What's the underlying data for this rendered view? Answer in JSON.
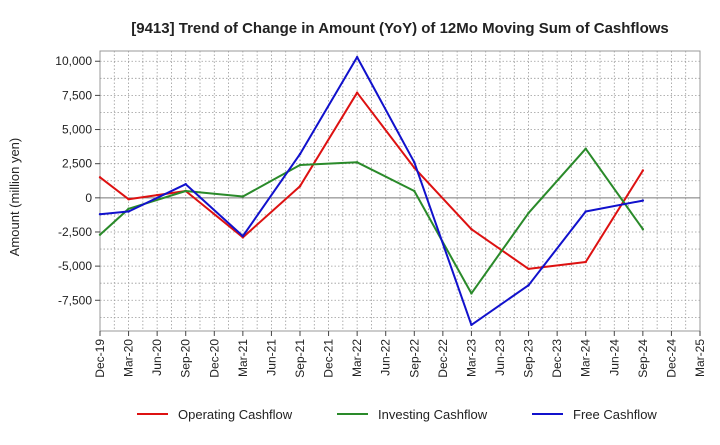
{
  "chart_data": {
    "type": "line",
    "title": "[9413]  Trend of Change in Amount (YoY) of 12Mo Moving Sum of Cashflows",
    "xlabel": "",
    "ylabel": "Amount (million yen)",
    "categories": [
      "Dec-19",
      "Mar-20",
      "Jun-20",
      "Sep-20",
      "Dec-20",
      "Mar-21",
      "Jun-21",
      "Sep-21",
      "Dec-21",
      "Mar-22",
      "Jun-22",
      "Sep-22",
      "Dec-22",
      "Mar-23",
      "Jun-23",
      "Sep-23",
      "Dec-23",
      "Mar-24",
      "Jun-24",
      "Sep-24",
      "Dec-24",
      "Mar-25"
    ],
    "ylim": [
      -9750,
      10750
    ],
    "yticks": [
      -7500,
      -5000,
      -2500,
      0,
      2500,
      5000,
      7500,
      10000
    ],
    "ytick_labels": [
      "-7,500",
      "-5,000",
      "-2,500",
      "0",
      "2,500",
      "5,000",
      "7,500",
      "10,000"
    ],
    "grid": true,
    "legend_position": "bottom",
    "series": [
      {
        "name": "Operating Cashflow",
        "color": "#dd1111",
        "values": [
          1500,
          -100,
          200,
          500,
          null,
          -2900,
          null,
          850,
          null,
          7700,
          null,
          2200,
          null,
          -2300,
          null,
          -5200,
          null,
          -4700,
          null,
          2000,
          null,
          null
        ]
      },
      {
        "name": "Investing Cashflow",
        "color": "#2a8a2a",
        "values": [
          -2700,
          -800,
          null,
          500,
          null,
          100,
          null,
          2400,
          null,
          2600,
          null,
          500,
          null,
          -7000,
          null,
          -1100,
          null,
          3600,
          null,
          -2300,
          null,
          null
        ]
      },
      {
        "name": "Free Cashflow",
        "color": "#1111cc",
        "values": [
          -1200,
          -1000,
          null,
          1000,
          null,
          -2800,
          null,
          3200,
          null,
          10300,
          null,
          2600,
          null,
          -9300,
          null,
          -6400,
          null,
          -1000,
          null,
          -200,
          null,
          null
        ]
      }
    ]
  }
}
